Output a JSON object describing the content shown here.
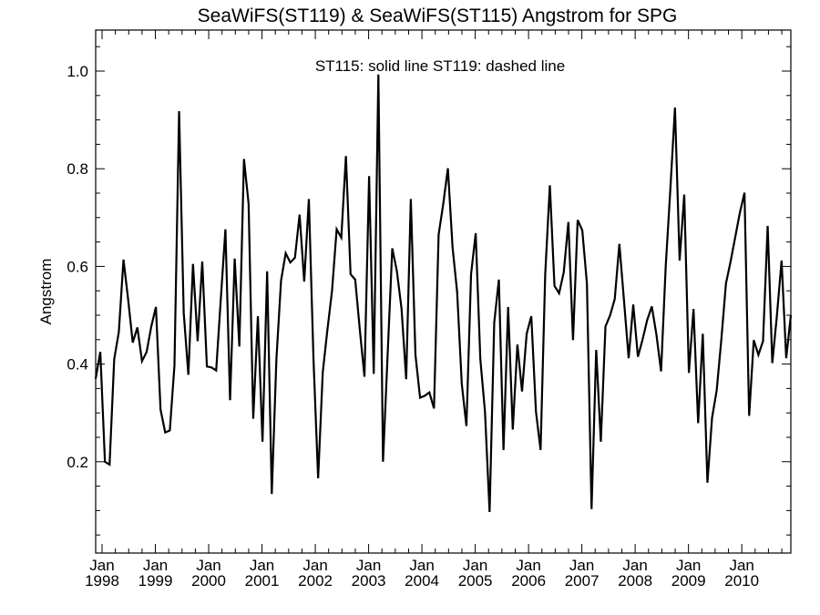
{
  "chart_data": {
    "type": "line",
    "title": "SeaWiFS(ST119) & SeaWiFS(ST115)  Angstrom for SPG",
    "annotation": "ST115: solid line   ST119: dashed line",
    "xlabel": "",
    "ylabel": "Angstrom",
    "xlim": [
      1997.88,
      2010.92
    ],
    "ylim": [
      0.013,
      1.084
    ],
    "yticks": [
      0.2,
      0.4,
      0.6,
      0.8,
      1.0
    ],
    "ytick_labels": [
      "0.2",
      "0.4",
      "0.6",
      "0.8",
      "1.0"
    ],
    "xticks": [
      1998,
      1999,
      2000,
      2001,
      2002,
      2003,
      2004,
      2005,
      2006,
      2007,
      2008,
      2009,
      2010
    ],
    "xtick_labels_month": [
      "Jan",
      "Jan",
      "Jan",
      "Jan",
      "Jan",
      "Jan",
      "Jan",
      "Jan",
      "Jan",
      "Jan",
      "Jan",
      "Jan",
      "Jan"
    ],
    "xtick_labels_year": [
      "1998",
      "1999",
      "2000",
      "2001",
      "2002",
      "2003",
      "2004",
      "2005",
      "2006",
      "2007",
      "2008",
      "2009",
      "2010"
    ],
    "grid": false,
    "line_color": "#000000",
    "series": [
      {
        "name": "ST115",
        "style": "solid",
        "values": [
          0.37,
          0.425,
          0.2,
          0.194,
          0.41,
          0.466,
          0.614,
          0.533,
          0.444,
          0.475,
          0.406,
          0.425,
          0.477,
          0.517,
          0.307,
          0.26,
          0.264,
          0.397,
          0.918,
          0.505,
          0.378,
          0.605,
          0.447,
          0.61,
          0.395,
          0.393,
          0.387,
          0.533,
          0.676,
          0.326,
          0.616,
          0.436,
          0.82,
          0.728,
          0.288,
          0.498,
          0.241,
          0.59,
          0.134,
          0.41,
          0.571,
          0.627,
          0.608,
          0.618,
          0.706,
          0.569,
          0.738,
          0.41,
          0.166,
          0.383,
          0.47,
          0.55,
          0.676,
          0.659,
          0.826,
          0.584,
          0.573,
          0.47,
          0.374,
          0.785,
          0.38,
          0.993,
          0.2,
          0.42,
          0.637,
          0.59,
          0.513,
          0.369,
          0.738,
          0.419,
          0.331,
          0.335,
          0.342,
          0.309,
          0.665,
          0.728,
          0.801,
          0.64,
          0.547,
          0.359,
          0.273,
          0.584,
          0.668,
          0.41,
          0.303,
          0.097,
          0.485,
          0.573,
          0.224,
          0.517,
          0.266,
          0.44,
          0.344,
          0.462,
          0.498,
          0.303,
          0.224,
          0.584,
          0.766,
          0.56,
          0.545,
          0.588,
          0.691,
          0.449,
          0.695,
          0.674,
          0.565,
          0.103,
          0.429,
          0.241,
          0.477,
          0.5,
          0.533,
          0.646,
          0.53,
          0.412,
          0.522,
          0.415,
          0.45,
          0.49,
          0.518,
          0.46,
          0.385,
          0.6,
          0.758,
          0.925,
          0.612,
          0.747,
          0.382,
          0.513,
          0.279,
          0.462,
          0.157,
          0.29,
          0.346,
          0.45,
          0.565,
          0.61,
          0.66,
          0.71,
          0.751,
          0.294,
          0.449,
          0.419,
          0.447,
          0.683,
          0.402,
          0.5,
          0.612,
          0.412,
          0.5
        ]
      }
    ]
  }
}
